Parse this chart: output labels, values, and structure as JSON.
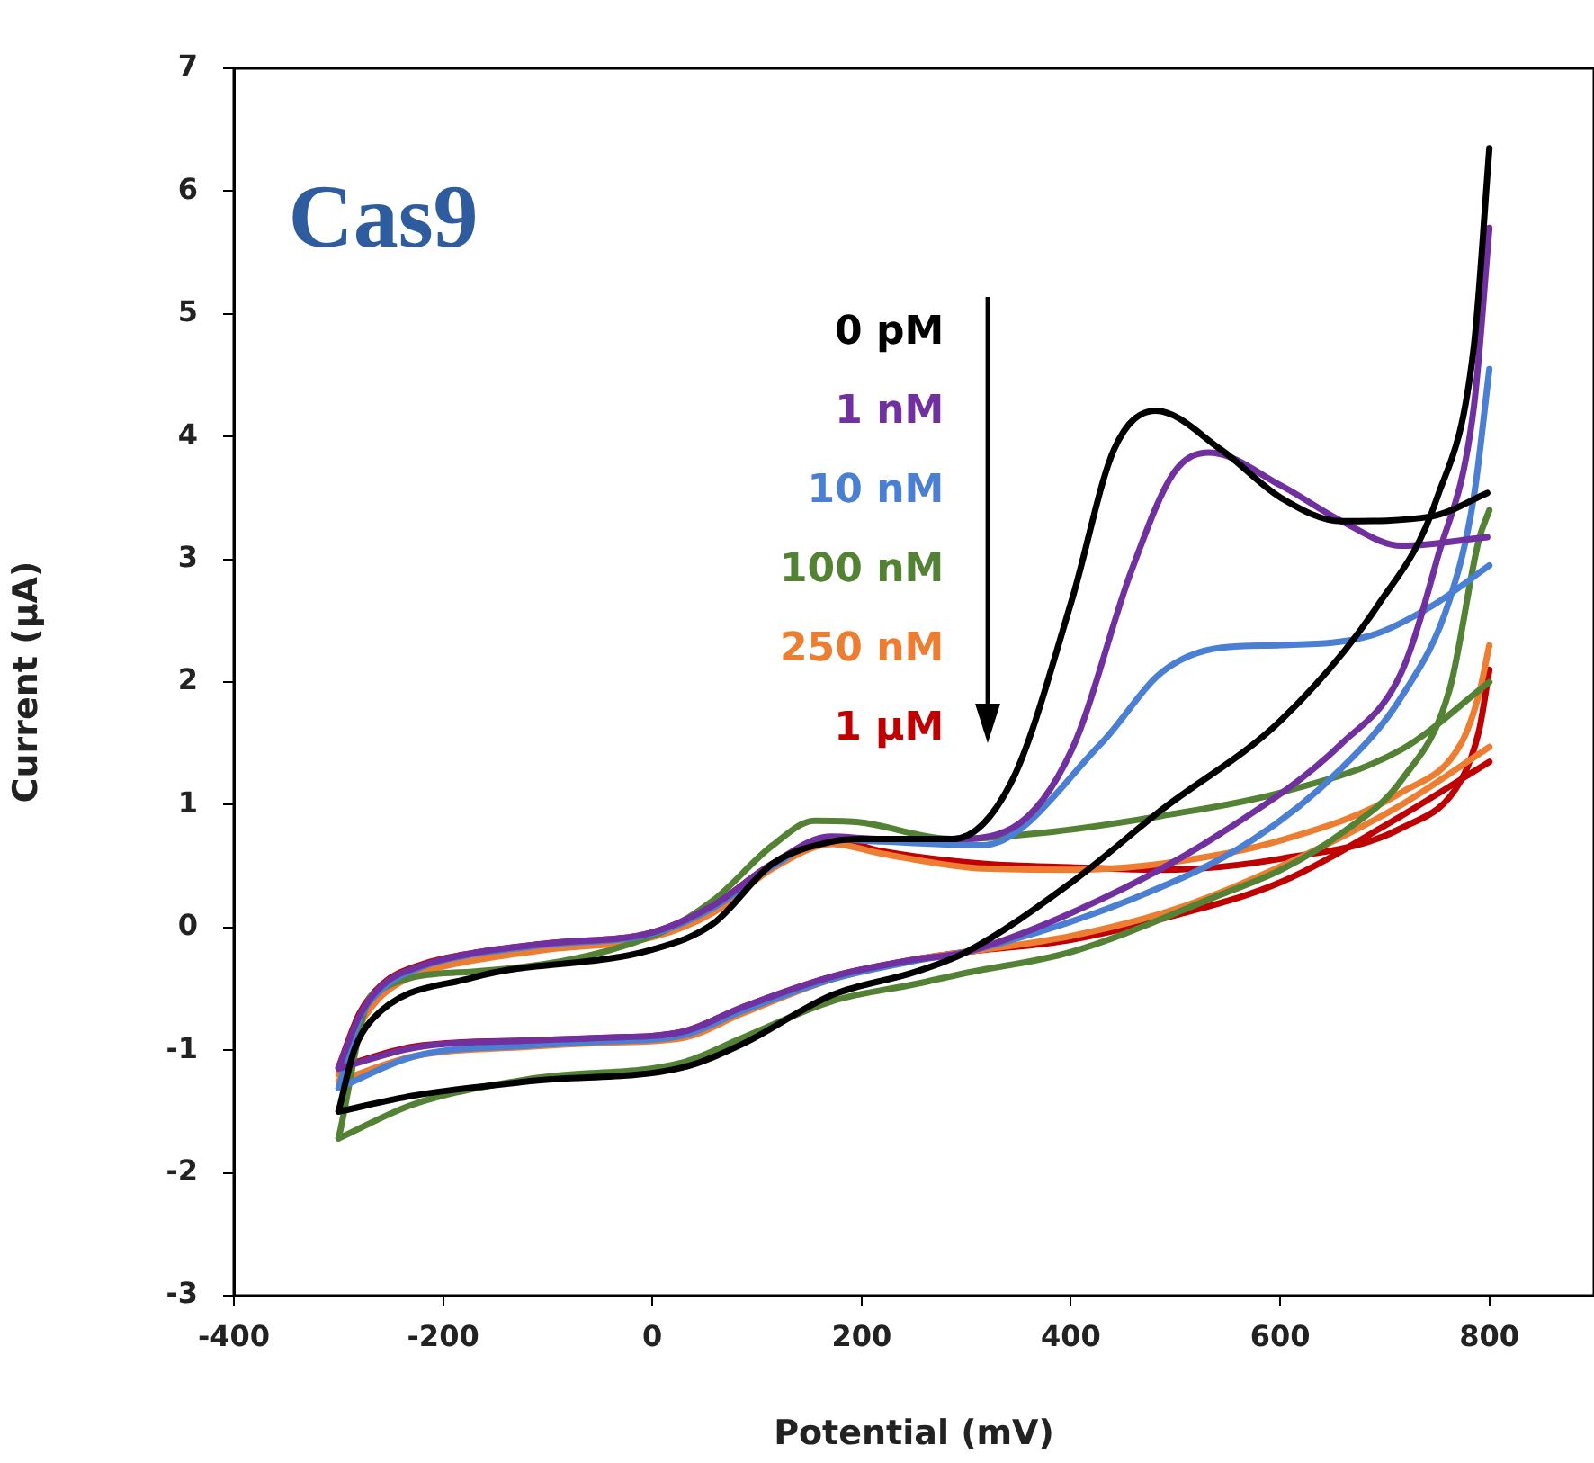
{
  "chart_data": {
    "type": "line",
    "xlabel": "Potential (mV)",
    "ylabel": "Current (μA)",
    "annotations": [
      "Cas9"
    ],
    "xlim": [
      -400,
      900
    ],
    "xticks": [
      -400,
      -200,
      0,
      200,
      400,
      600,
      800
    ],
    "ylim": [
      -3,
      7
    ],
    "yticks": [
      -3,
      -2,
      -1,
      0,
      1,
      2,
      3,
      4,
      5,
      6,
      7
    ],
    "grid": false,
    "legend": "top",
    "marker": "none",
    "line_style": "solid",
    "series": [
      {
        "name": "0 pM",
        "color": "#000000",
        "x": [
          -300,
          -285,
          -268,
          -172,
          0,
          58,
          115,
          172,
          201,
          287,
          344,
          401,
          441,
          481,
          544,
          601,
          659,
          745,
          798
        ],
        "values": [
          -1.5,
          -1.0,
          -0.75,
          -0.41,
          -0.18,
          0.03,
          0.52,
          0.7,
          0.72,
          0.72,
          1.2,
          2.67,
          3.89,
          4.21,
          3.89,
          3.5,
          3.31,
          3.35,
          3.54
        ]
      },
      {
        "color": "#000000",
        "x": [
          -300,
          -228,
          -114,
          29,
          86,
          172,
          252,
          300,
          401,
          487,
          601,
          693,
          750,
          785,
          800
        ],
        "values": [
          -1.5,
          -1.37,
          -1.25,
          -1.14,
          -0.95,
          -0.55,
          -0.36,
          -0.2,
          0.37,
          0.96,
          1.69,
          2.62,
          3.5,
          4.72,
          6.35
        ]
      },
      {
        "name": "1 nM",
        "color": "#7030a0",
        "x": [
          -300,
          -280,
          -258,
          -220,
          -172,
          -100,
          0,
          58,
          115,
          170,
          220,
          287,
          344,
          401,
          458,
          498,
          532,
          601,
          659,
          716,
          798
        ],
        "values": [
          -1.15,
          -0.72,
          -0.47,
          -0.31,
          -0.21,
          -0.13,
          -0.04,
          0.18,
          0.52,
          0.74,
          0.72,
          0.72,
          0.81,
          1.45,
          2.91,
          3.7,
          3.87,
          3.6,
          3.31,
          3.11,
          3.18
        ]
      },
      {
        "color": "#7030a0",
        "x": [
          -300,
          -228,
          -114,
          -50,
          29,
          86,
          172,
          252,
          300,
          429,
          544,
          659,
          716,
          750,
          785,
          800
        ],
        "values": [
          -1.15,
          -0.98,
          -0.92,
          -0.9,
          -0.85,
          -0.65,
          -0.4,
          -0.26,
          -0.2,
          0.23,
          0.77,
          1.5,
          2.08,
          3.0,
          4.23,
          5.7
        ]
      },
      {
        "name": "10 nM",
        "color": "#4a7fd4",
        "x": [
          -300,
          -280,
          -258,
          -220,
          -172,
          -100,
          0,
          58,
          115,
          170,
          220,
          316,
          429,
          487,
          544,
          601,
          687,
          745,
          800
        ],
        "values": [
          -1.31,
          -0.75,
          -0.5,
          -0.32,
          -0.22,
          -0.14,
          -0.05,
          0.16,
          0.5,
          0.72,
          0.7,
          0.67,
          1.5,
          2.08,
          2.28,
          2.3,
          2.38,
          2.62,
          2.95
        ]
      },
      {
        "color": "#4a7fd4",
        "x": [
          -300,
          -228,
          -114,
          -50,
          29,
          86,
          172,
          252,
          300,
          458,
          573,
          659,
          716,
          762,
          785,
          800
        ],
        "values": [
          -1.31,
          -1.05,
          -0.96,
          -0.93,
          -0.88,
          -0.68,
          -0.42,
          -0.27,
          -0.2,
          0.23,
          0.71,
          1.3,
          1.88,
          2.67,
          3.5,
          4.55
        ]
      },
      {
        "name": "100 nM",
        "color": "#548235",
        "x": [
          -300,
          -268,
          -172,
          0,
          58,
          115,
          155,
          195,
          287,
          372,
          487,
          601,
          716,
          800
        ],
        "values": [
          -1.72,
          -0.55,
          -0.36,
          -0.07,
          0.22,
          0.67,
          0.87,
          0.86,
          0.72,
          0.77,
          0.91,
          1.1,
          1.45,
          2.0
        ]
      },
      {
        "color": "#548235",
        "x": [
          -300,
          -228,
          -114,
          29,
          86,
          172,
          252,
          300,
          400,
          544,
          601,
          659,
          716,
          762,
          790,
          800
        ],
        "values": [
          -1.72,
          -1.44,
          -1.23,
          -1.1,
          -0.9,
          -0.6,
          -0.46,
          -0.37,
          -0.2,
          0.27,
          0.47,
          0.77,
          1.2,
          1.94,
          3.16,
          3.4
        ]
      },
      {
        "name": "250 nM",
        "color": "#ed7d31",
        "x": [
          -300,
          -280,
          -258,
          -220,
          -172,
          -100,
          0,
          58,
          115,
          172,
          220,
          316,
          400,
          487,
          601,
          716,
          773,
          790,
          800
        ],
        "values": [
          -1.2,
          -0.8,
          -0.55,
          -0.37,
          -0.27,
          -0.18,
          -0.08,
          0.12,
          0.48,
          0.68,
          0.6,
          0.48,
          0.47,
          0.52,
          0.71,
          1.1,
          1.5,
          1.9,
          2.3
        ]
      },
      {
        "color": "#ed7d31",
        "x": [
          -300,
          -228,
          -114,
          -50,
          29,
          86,
          172,
          252,
          300,
          400,
          500,
          601,
          716,
          800
        ],
        "values": [
          -1.25,
          -1.05,
          -0.97,
          -0.94,
          -0.9,
          -0.7,
          -0.42,
          -0.26,
          -0.2,
          -0.07,
          0.15,
          0.5,
          1.0,
          1.47
        ]
      },
      {
        "name": "1 μM",
        "color": "#c00000",
        "x": [
          -300,
          -280,
          -258,
          -220,
          -172,
          -100,
          0,
          58,
          115,
          170,
          220,
          316,
          400,
          487,
          601,
          716,
          773,
          790,
          800
        ],
        "values": [
          -1.14,
          -0.7,
          -0.46,
          -0.3,
          -0.21,
          -0.13,
          -0.04,
          0.18,
          0.52,
          0.72,
          0.62,
          0.52,
          0.49,
          0.47,
          0.56,
          0.81,
          1.2,
          1.6,
          2.1
        ]
      },
      {
        "color": "#c00000",
        "x": [
          -300,
          -228,
          -114,
          -50,
          29,
          86,
          172,
          252,
          300,
          400,
          500,
          601,
          716,
          800
        ],
        "values": [
          -1.14,
          -0.97,
          -0.92,
          -0.9,
          -0.85,
          -0.65,
          -0.4,
          -0.26,
          -0.2,
          -0.1,
          0.1,
          0.37,
          0.91,
          1.35
        ]
      }
    ]
  }
}
